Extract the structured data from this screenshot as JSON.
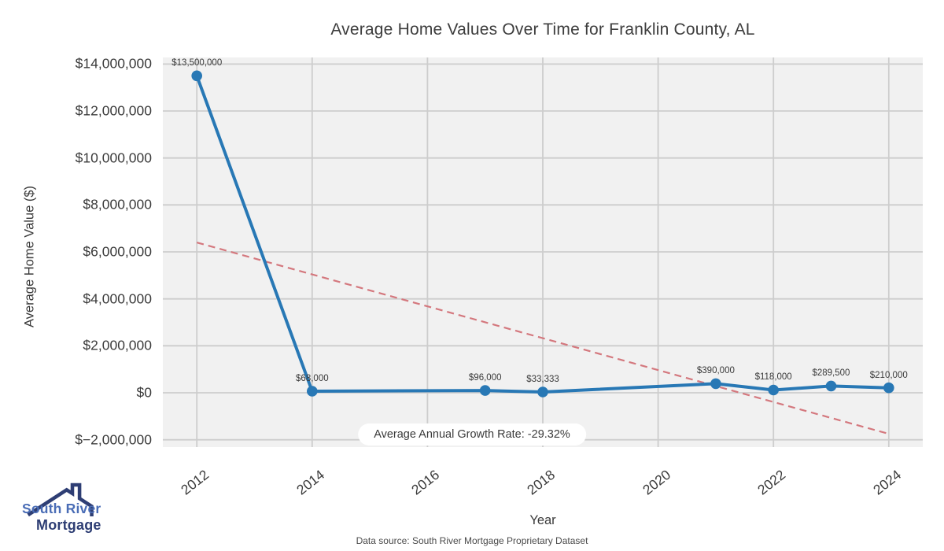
{
  "title": "Average Home Values Over Time for Franklin County, AL",
  "chart_data": {
    "type": "line",
    "title": "Average Home Values Over Time for Franklin County, AL",
    "xlabel": "Year",
    "ylabel": "Average Home Value ($)",
    "x": [
      2012,
      2014,
      2017,
      2018,
      2021,
      2022,
      2023,
      2024
    ],
    "values": [
      13500000,
      68000,
      96000,
      33333,
      390000,
      118000,
      289500,
      210000
    ],
    "point_labels": [
      "$13,500,000",
      "$68,000",
      "$96,000",
      "$33,333",
      "$390,000",
      "$118,000",
      "$289,500",
      "$210,000"
    ],
    "trend": {
      "x": [
        2012,
        2024
      ],
      "values": [
        6400000,
        -1750000
      ],
      "style": "dashed"
    },
    "annotation": "Average Annual Growth Rate: -29.32%",
    "xlim": [
      2011.41,
      2024.59
    ],
    "ylim": [
      -2313000,
      14280000
    ],
    "x_ticks": [
      {
        "label": "2012",
        "value": 2012
      },
      {
        "label": "2014",
        "value": 2014
      },
      {
        "label": "2016",
        "value": 2016
      },
      {
        "label": "2018",
        "value": 2018
      },
      {
        "label": "2020",
        "value": 2020
      },
      {
        "label": "2022",
        "value": 2022
      },
      {
        "label": "2024",
        "value": 2024
      }
    ],
    "y_ticks": [
      {
        "label": "$14,000,000",
        "value": 14000000
      },
      {
        "label": "$12,000,000",
        "value": 12000000
      },
      {
        "label": "$10,000,000",
        "value": 10000000
      },
      {
        "label": "$8,000,000",
        "value": 8000000
      },
      {
        "label": "$6,000,000",
        "value": 6000000
      },
      {
        "label": "$4,000,000",
        "value": 4000000
      },
      {
        "label": "$2,000,000",
        "value": 2000000
      },
      {
        "label": "$0",
        "value": 0
      },
      {
        "label": "$−2,000,000",
        "value": -2000000
      }
    ],
    "grid": true,
    "legend": null
  },
  "footer": {
    "source": "Data source: South River Mortgage Proprietary Dataset"
  },
  "logo": {
    "line1": "South River",
    "line2": "Mortgage"
  },
  "colors": {
    "line": "#2878b5",
    "trend": "#d4787e",
    "plot_bg": "#f1f1f1",
    "gridline": "#cdcdcd",
    "text": "#3a3a3a",
    "annotation_bg": "#ffffff",
    "logo_blue": "#4a6db6",
    "logo_navy": "#2e3e74"
  }
}
